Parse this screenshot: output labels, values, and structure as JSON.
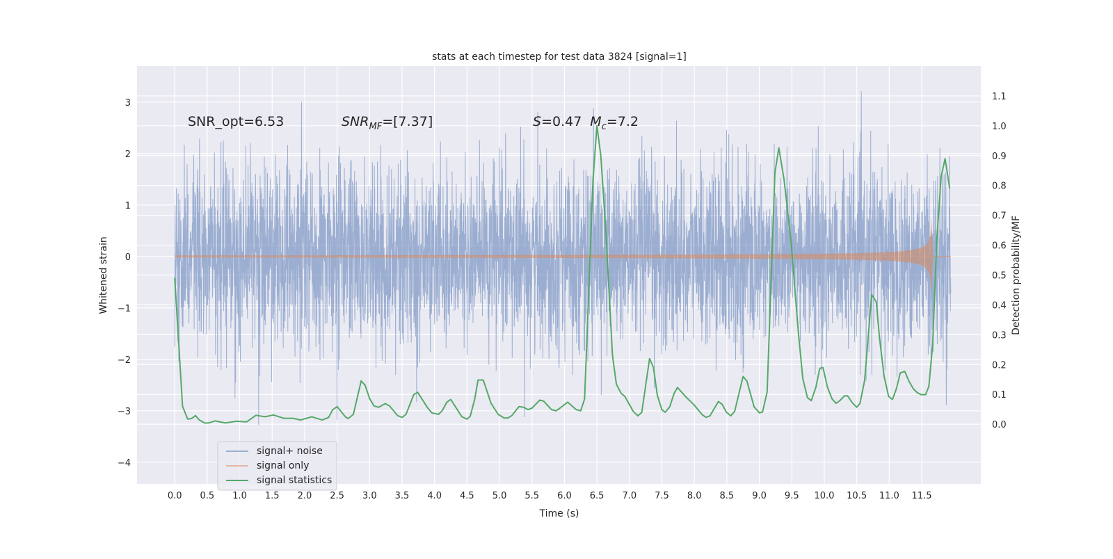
{
  "chart_data": {
    "type": "line",
    "title": "stats at each timestep for test data 3824 [signal=1]",
    "xlabel": "Time (s)",
    "ylabel_left": "Whitened strain",
    "ylabel_right": "Detection probability/MF",
    "xlim": [
      -0.58,
      12.41
    ],
    "ylim_left": [
      -4.42,
      3.7
    ],
    "ylim_right": [
      -0.2,
      1.2
    ],
    "grid": true,
    "legend_position": "lower-left",
    "x_ticks": [
      "0.0",
      "0.5",
      "1.0",
      "1.5",
      "2.0",
      "2.5",
      "3.0",
      "3.5",
      "4.0",
      "4.5",
      "5.0",
      "5.5",
      "6.0",
      "6.5",
      "7.0",
      "7.5",
      "8.0",
      "8.5",
      "9.0",
      "9.5",
      "10.0",
      "10.5",
      "11.0",
      "11.5"
    ],
    "y_ticks_left": [
      "−4",
      "−3",
      "−2",
      "−1",
      "0",
      "1",
      "2",
      "3"
    ],
    "y_ticks_right": [
      "0.0",
      "0.1",
      "0.2",
      "0.3",
      "0.4",
      "0.5",
      "0.6",
      "0.7",
      "0.8",
      "0.9",
      "1.0",
      "1.1"
    ],
    "annotations": {
      "snr_opt": "SNR_opt=6.53",
      "snr_mf_main": "SNR",
      "snr_mf_sub": "MF",
      "snr_mf_value": "=[7.37]",
      "s_label": "S",
      "s_value": "=0.47",
      "mc_main": "M",
      "mc_sub": "c",
      "mc_value": "=7.2"
    },
    "series": [
      {
        "name": "signal+ noise",
        "axis": "left",
        "color": "#4C72B0",
        "kind": "whitened noise, std ≈ 0.85, t 0–11.95 s"
      },
      {
        "name": "signal only",
        "axis": "left",
        "color": "#DD8452",
        "kind": "chirp",
        "merger_time": 11.66,
        "peak_amplitude": 0.8
      },
      {
        "name": "signal statistics",
        "axis": "right",
        "color": "#55A868",
        "x": [
          0,
          0.12,
          0.2,
          0.26,
          0.32,
          0.38,
          0.46,
          0.52,
          0.62,
          0.78,
          0.95,
          1.11,
          1.25,
          1.39,
          1.52,
          1.68,
          1.82,
          1.94,
          2.11,
          2.27,
          2.37,
          2.43,
          2.5,
          2.63,
          2.67,
          2.75,
          2.87,
          2.93,
          3.0,
          3.07,
          3.14,
          3.24,
          3.31,
          3.43,
          3.5,
          3.56,
          3.68,
          3.74,
          3.89,
          3.96,
          4.06,
          4.12,
          4.19,
          4.25,
          4.32,
          4.42,
          4.5,
          4.55,
          4.62,
          4.67,
          4.75,
          4.87,
          4.98,
          5.07,
          5.13,
          5.19,
          5.3,
          5.37,
          5.44,
          5.5,
          5.62,
          5.68,
          5.8,
          5.87,
          5.93,
          6.05,
          6.18,
          6.25,
          6.31,
          6.44,
          6.5,
          6.56,
          6.63,
          6.74,
          6.8,
          6.87,
          6.93,
          7.06,
          7.13,
          7.19,
          7.31,
          7.37,
          7.43,
          7.5,
          7.55,
          7.62,
          7.69,
          7.74,
          7.88,
          7.99,
          8.12,
          8.18,
          8.24,
          8.37,
          8.43,
          8.49,
          8.56,
          8.62,
          8.75,
          8.81,
          8.92,
          9.0,
          9.05,
          9.12,
          9.24,
          9.3,
          9.38,
          9.49,
          9.6,
          9.67,
          9.74,
          9.8,
          9.87,
          9.93,
          9.98,
          10.05,
          10.12,
          10.18,
          10.24,
          10.31,
          10.36,
          10.43,
          10.5,
          10.55,
          10.62,
          10.73,
          10.8,
          10.85,
          10.92,
          10.99,
          11.05,
          11.11,
          11.17,
          11.24,
          11.3,
          11.37,
          11.43,
          11.49,
          11.56,
          11.61,
          11.67,
          11.73,
          11.8,
          11.86,
          11.93
        ],
        "values": [
          0.49,
          0.06,
          0.017,
          0.019,
          0.029,
          0.014,
          0.004,
          0.004,
          0.011,
          0.004,
          0.01,
          0.008,
          0.03,
          0.025,
          0.031,
          0.02,
          0.02,
          0.014,
          0.025,
          0.014,
          0.023,
          0.048,
          0.059,
          0.024,
          0.019,
          0.033,
          0.145,
          0.131,
          0.086,
          0.061,
          0.057,
          0.069,
          0.061,
          0.029,
          0.023,
          0.033,
          0.099,
          0.107,
          0.056,
          0.038,
          0.033,
          0.046,
          0.074,
          0.083,
          0.059,
          0.025,
          0.017,
          0.027,
          0.086,
          0.148,
          0.148,
          0.07,
          0.033,
          0.021,
          0.021,
          0.029,
          0.059,
          0.057,
          0.049,
          0.054,
          0.081,
          0.077,
          0.049,
          0.045,
          0.054,
          0.074,
          0.049,
          0.045,
          0.085,
          0.82,
          1.0,
          0.9,
          0.67,
          0.23,
          0.134,
          0.104,
          0.093,
          0.043,
          0.028,
          0.04,
          0.22,
          0.19,
          0.096,
          0.049,
          0.04,
          0.058,
          0.104,
          0.123,
          0.089,
          0.066,
          0.032,
          0.023,
          0.028,
          0.076,
          0.066,
          0.041,
          0.028,
          0.043,
          0.16,
          0.144,
          0.058,
          0.038,
          0.041,
          0.108,
          0.843,
          0.926,
          0.82,
          0.61,
          0.31,
          0.153,
          0.089,
          0.079,
          0.123,
          0.187,
          0.19,
          0.123,
          0.085,
          0.07,
          0.079,
          0.095,
          0.095,
          0.072,
          0.057,
          0.07,
          0.146,
          0.434,
          0.41,
          0.29,
          0.161,
          0.093,
          0.083,
          0.119,
          0.172,
          0.177,
          0.146,
          0.119,
          0.106,
          0.099,
          0.099,
          0.127,
          0.27,
          0.61,
          0.83,
          0.89,
          0.79
        ]
      }
    ],
    "legend": [
      "signal+ noise",
      "signal only",
      "signal statistics"
    ]
  }
}
